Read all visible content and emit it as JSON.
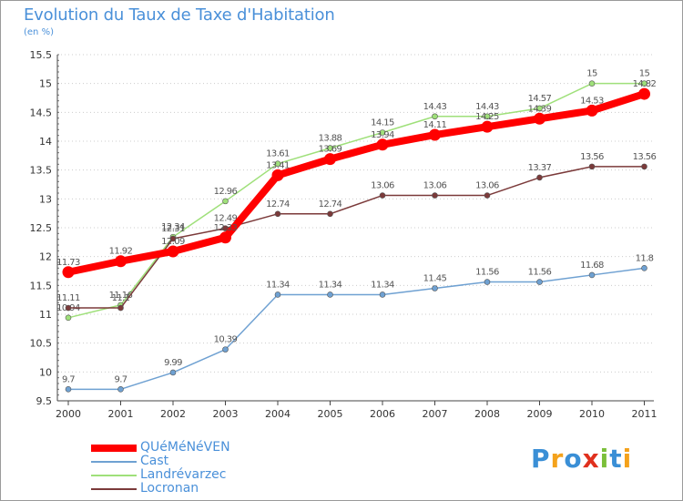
{
  "title": "Evolution du Taux de Taxe d'Habitation",
  "unit_label": "(en %)",
  "brand": "Proxiti",
  "chart_data": {
    "type": "line",
    "title": "Evolution du Taux de Taxe d'Habitation",
    "subtitle": "(en %)",
    "xlabel": "",
    "ylabel": "",
    "ylim": [
      9.5,
      15.5
    ],
    "y_ticks": [
      "9.5",
      "10",
      "10.5",
      "11",
      "11.5",
      "12",
      "12.5",
      "13",
      "13.5",
      "14",
      "14.5",
      "15",
      "15.5"
    ],
    "x": [
      "2000",
      "2001",
      "2002",
      "2003",
      "2004",
      "2005",
      "2006",
      "2007",
      "2008",
      "2009",
      "2010",
      "2011"
    ],
    "grid": "horizontal dotted",
    "legend_position": "bottom-left",
    "series": [
      {
        "name": "Cast",
        "color": "#6fa1d2",
        "values": [
          9.7,
          9.7,
          9.99,
          10.39,
          11.34,
          11.34,
          11.34,
          11.45,
          11.56,
          11.56,
          11.68,
          11.8
        ],
        "labels": [
          "9.7",
          "9.7",
          "9.99",
          "10.39",
          "11.34",
          "11.34",
          "11.34",
          "11.45",
          "11.56",
          "11.56",
          "11.68",
          "11.8"
        ]
      },
      {
        "name": "Landrévarzec",
        "color": "#9fe07a",
        "values": [
          10.94,
          11.16,
          12.34,
          12.96,
          13.61,
          13.88,
          14.15,
          14.43,
          14.43,
          14.57,
          15,
          15
        ],
        "labels": [
          "10.94",
          "11.16",
          "12.34",
          "12.96",
          "13.61",
          "13.88",
          "14.15",
          "14.43",
          "14.43",
          "14.57",
          "15",
          "15"
        ]
      },
      {
        "name": "Locronan",
        "color": "#7b3a3a",
        "values": [
          11.11,
          11.11,
          12.31,
          12.49,
          12.74,
          12.74,
          13.06,
          13.06,
          13.06,
          13.37,
          13.56,
          13.56
        ],
        "labels": [
          "11.11",
          "11.1",
          "12.31",
          "12.49",
          "12.74",
          "12.74",
          "13.06",
          "13.06",
          "13.06",
          "13.37",
          "13.56",
          "13.56"
        ]
      },
      {
        "name": "QUéMéNéVEN",
        "color": "#ff0000",
        "values": [
          11.73,
          11.92,
          12.09,
          12.33,
          13.41,
          13.69,
          13.94,
          14.11,
          14.25,
          14.39,
          14.53,
          14.82
        ],
        "labels": [
          "11.73",
          "11.92",
          "12.09",
          "12.33",
          "13.41",
          "13.69",
          "13.94",
          "14.11",
          "14.25",
          "14.39",
          "14.53",
          "14.82"
        ]
      }
    ],
    "legend": [
      {
        "name": "QUéMéNéVEN",
        "color": "#ff0000",
        "thickness": 8
      },
      {
        "name": "Cast",
        "color": "#6fa1d2",
        "thickness": 2
      },
      {
        "name": "Landrévarzec",
        "color": "#9fe07a",
        "thickness": 2
      },
      {
        "name": "Locronan",
        "color": "#7b3a3a",
        "thickness": 2
      }
    ]
  }
}
